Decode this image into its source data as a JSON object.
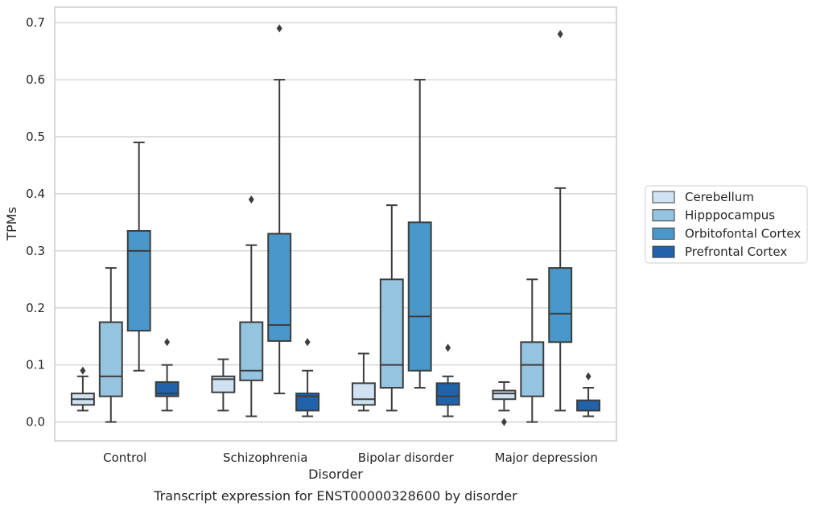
{
  "caption": "Transcript expression for ENST00000328600 by disorder",
  "chart_data": {
    "type": "box",
    "title": "",
    "xlabel": "Disorder",
    "ylabel": "TPMs",
    "ylim": [
      -0.033,
      0.727
    ],
    "yticks": [
      0.0,
      0.1,
      0.2,
      0.3,
      0.4,
      0.5,
      0.6,
      0.7
    ],
    "ytick_labels": [
      "0.0",
      "0.1",
      "0.2",
      "0.3",
      "0.4",
      "0.5",
      "0.6",
      "0.7"
    ],
    "grid": "horizontal",
    "legend_position": "right",
    "categories": [
      "Control",
      "Schizophrenia",
      "Bipolar disorder",
      "Major depression"
    ],
    "series": [
      {
        "name": "Cerebellum",
        "color": "#d0e1f2",
        "boxes": [
          {
            "whisker_low": 0.02,
            "q1": 0.03,
            "median": 0.04,
            "q3": 0.05,
            "whisker_high": 0.08,
            "outliers": [
              0.09
            ]
          },
          {
            "whisker_low": 0.02,
            "q1": 0.052,
            "median": 0.075,
            "q3": 0.08,
            "whisker_high": 0.11,
            "outliers": []
          },
          {
            "whisker_low": 0.02,
            "q1": 0.03,
            "median": 0.04,
            "q3": 0.068,
            "whisker_high": 0.12,
            "outliers": []
          },
          {
            "whisker_low": 0.02,
            "q1": 0.04,
            "median": 0.05,
            "q3": 0.055,
            "whisker_high": 0.07,
            "outliers": [
              0.0
            ]
          }
        ]
      },
      {
        "name": "Hipppocampus",
        "color": "#94c4df",
        "boxes": [
          {
            "whisker_low": 0.0,
            "q1": 0.045,
            "median": 0.08,
            "q3": 0.175,
            "whisker_high": 0.27,
            "outliers": []
          },
          {
            "whisker_low": 0.01,
            "q1": 0.073,
            "median": 0.09,
            "q3": 0.175,
            "whisker_high": 0.31,
            "outliers": [
              0.39
            ]
          },
          {
            "whisker_low": 0.02,
            "q1": 0.06,
            "median": 0.1,
            "q3": 0.25,
            "whisker_high": 0.38,
            "outliers": []
          },
          {
            "whisker_low": 0.0,
            "q1": 0.045,
            "median": 0.1,
            "q3": 0.14,
            "whisker_high": 0.25,
            "outliers": []
          }
        ]
      },
      {
        "name": "Orbitofontal Cortex",
        "color": "#4a98c9",
        "boxes": [
          {
            "whisker_low": 0.09,
            "q1": 0.16,
            "median": 0.3,
            "q3": 0.335,
            "whisker_high": 0.49,
            "outliers": []
          },
          {
            "whisker_low": 0.05,
            "q1": 0.142,
            "median": 0.17,
            "q3": 0.33,
            "whisker_high": 0.6,
            "outliers": [
              0.69
            ]
          },
          {
            "whisker_low": 0.06,
            "q1": 0.09,
            "median": 0.185,
            "q3": 0.35,
            "whisker_high": 0.6,
            "outliers": []
          },
          {
            "whisker_low": 0.02,
            "q1": 0.14,
            "median": 0.19,
            "q3": 0.27,
            "whisker_high": 0.41,
            "outliers": [
              0.68
            ]
          }
        ]
      },
      {
        "name": "Prefrontal Cortex",
        "color": "#2163aa",
        "boxes": [
          {
            "whisker_low": 0.02,
            "q1": 0.045,
            "median": 0.05,
            "q3": 0.07,
            "whisker_high": 0.1,
            "outliers": [
              0.14
            ]
          },
          {
            "whisker_low": 0.01,
            "q1": 0.02,
            "median": 0.045,
            "q3": 0.05,
            "whisker_high": 0.09,
            "outliers": [
              0.14
            ]
          },
          {
            "whisker_low": 0.01,
            "q1": 0.03,
            "median": 0.045,
            "q3": 0.068,
            "whisker_high": 0.08,
            "outliers": [
              0.13
            ]
          },
          {
            "whisker_low": 0.01,
            "q1": 0.02,
            "median": 0.02,
            "q3": 0.038,
            "whisker_high": 0.06,
            "outliers": [
              0.08
            ]
          }
        ]
      }
    ]
  }
}
